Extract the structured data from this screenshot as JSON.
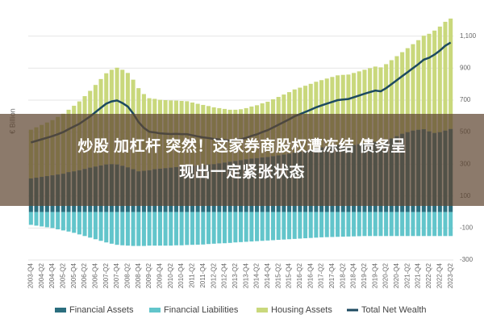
{
  "chart_data": {
    "type": "bar",
    "stacked": true,
    "y_label": "€ Billion",
    "categories": [
      "2003-Q4",
      null,
      "2004-Q2",
      null,
      "2004-Q4",
      null,
      "2005-Q2",
      null,
      "2005-Q4",
      null,
      "2006-Q2",
      null,
      "2006-Q4",
      null,
      "2007-Q2",
      null,
      "2007-Q4",
      null,
      "2008-Q2",
      null,
      "2008-Q4",
      null,
      "2009-Q2",
      null,
      "2009-Q4",
      null,
      "2010-Q2",
      null,
      "2010-Q4",
      null,
      "2011-Q2",
      null,
      "2011-Q4",
      null,
      "2012-Q2",
      null,
      "2012-Q4",
      null,
      "2013-Q2",
      null,
      "2013-Q4",
      null,
      "2014-Q2",
      null,
      "2014-Q4",
      null,
      "2015-Q2",
      null,
      "2015-Q4",
      null,
      "2016-Q2",
      null,
      "2016-Q4",
      null,
      "2017-Q2",
      null,
      "2017-Q4",
      null,
      "2018-Q2",
      null,
      "2018-Q4",
      null,
      "2019-Q2",
      null,
      "2019-Q4",
      null,
      "2020-Q2",
      null,
      "2020-Q4",
      null,
      "2021-Q2",
      null,
      "2021-Q4",
      null,
      "2022-Q2",
      null,
      "2022-Q4",
      null,
      "2023-Q2"
    ],
    "series": [
      {
        "name": "Financial Assets",
        "color": "#2b6e7e",
        "values": [
          210,
          215,
          220,
          225,
          230,
          235,
          240,
          250,
          255,
          262,
          270,
          278,
          285,
          292,
          298,
          300,
          298,
          290,
          280,
          268,
          255,
          258,
          262,
          268,
          272,
          275,
          278,
          282,
          285,
          288,
          290,
          292,
          295,
          298,
          300,
          305,
          310,
          315,
          320,
          325,
          330,
          335,
          338,
          342,
          345,
          350,
          355,
          360,
          365,
          372,
          378,
          385,
          392,
          400,
          405,
          410,
          415,
          420,
          418,
          415,
          420,
          425,
          430,
          435,
          440,
          430,
          445,
          460,
          475,
          490,
          500,
          510,
          515,
          518,
          505,
          495,
          500,
          510,
          520
        ]
      },
      {
        "name": "Financial Liabilities",
        "color": "#62c5cb",
        "values": [
          -80,
          -85,
          -90,
          -95,
          -100,
          -108,
          -115,
          -122,
          -130,
          -140,
          -150,
          -160,
          -170,
          -180,
          -190,
          -198,
          -205,
          -208,
          -210,
          -212,
          -212,
          -212,
          -210,
          -210,
          -210,
          -210,
          -210,
          -208,
          -208,
          -206,
          -205,
          -204,
          -203,
          -200,
          -198,
          -196,
          -195,
          -193,
          -190,
          -188,
          -186,
          -184,
          -182,
          -180,
          -178,
          -176,
          -174,
          -172,
          -170,
          -168,
          -166,
          -164,
          -162,
          -160,
          -158,
          -157,
          -156,
          -155,
          -154,
          -153,
          -152,
          -151,
          -150,
          -150,
          -150,
          -150,
          -150,
          -150,
          -150,
          -150,
          -150,
          -150,
          -150,
          -150,
          -150,
          -150,
          -150,
          -150,
          -150
        ]
      },
      {
        "name": "Housing Assets",
        "color": "#c9d87c",
        "values": [
          305,
          315,
          325,
          335,
          345,
          360,
          375,
          390,
          410,
          430,
          455,
          480,
          510,
          540,
          570,
          590,
          605,
          600,
          590,
          560,
          520,
          480,
          450,
          440,
          430,
          425,
          420,
          415,
          410,
          405,
          395,
          385,
          375,
          365,
          355,
          345,
          335,
          325,
          320,
          318,
          320,
          325,
          330,
          338,
          345,
          355,
          365,
          375,
          385,
          395,
          400,
          405,
          410,
          415,
          420,
          425,
          430,
          435,
          440,
          445,
          450,
          455,
          460,
          465,
          470,
          475,
          480,
          490,
          500,
          510,
          525,
          540,
          560,
          585,
          610,
          640,
          660,
          680,
          690
        ]
      },
      {
        "name": "Total Net Wealth",
        "type": "line",
        "color": "#1d4a60",
        "values": [
          435,
          445,
          455,
          465,
          475,
          487,
          500,
          518,
          535,
          552,
          575,
          598,
          625,
          652,
          678,
          692,
          698,
          682,
          660,
          616,
          563,
          526,
          502,
          498,
          492,
          490,
          488,
          489,
          487,
          487,
          480,
          473,
          467,
          463,
          457,
          454,
          450,
          447,
          450,
          455,
          464,
          476,
          486,
          500,
          512,
          529,
          546,
          563,
          580,
          599,
          612,
          626,
          640,
          655,
          667,
          678,
          689,
          700,
          704,
          707,
          718,
          729,
          740,
          750,
          760,
          755,
          775,
          800,
          825,
          850,
          875,
          900,
          925,
          953,
          965,
          985,
          1010,
          1040,
          1060
        ]
      }
    ],
    "ylim": [
      -300,
      1200
    ],
    "yticks": [
      -300,
      -100,
      100,
      300,
      500,
      700,
      900,
      {
        "value": 1100,
        "label": "1,100"
      }
    ],
    "grid": true
  },
  "banner": {
    "lines": [
      "炒股 加杠杆 突然！这家券商股权遭冻结 债务呈",
      "现出一定紧张状态"
    ]
  }
}
